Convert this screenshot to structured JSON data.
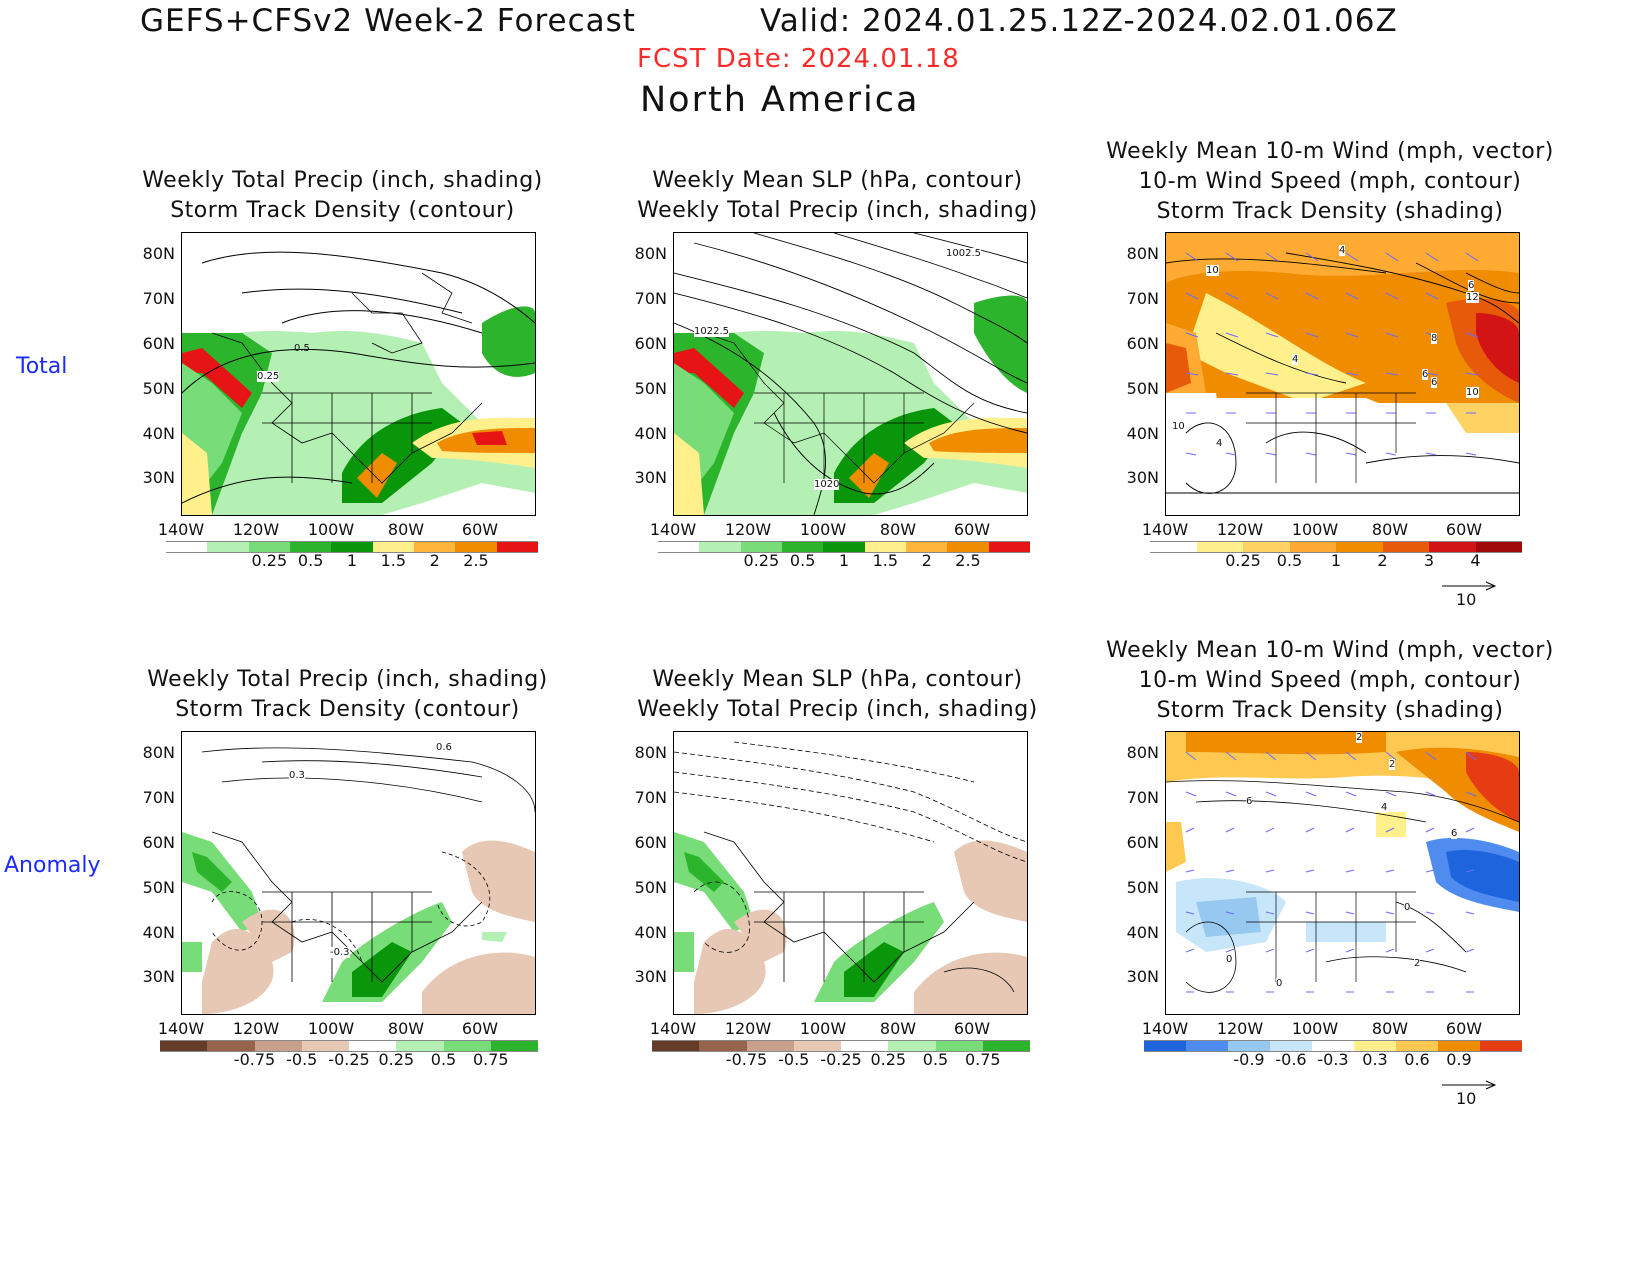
{
  "header": {
    "title": "GEFS+CFSv2 Week-2 Forecast",
    "valid": "Valid: 2024.01.25.12Z-2024.02.01.06Z",
    "fcst_date": "FCST Date: 2024.01.18",
    "region": "North America"
  },
  "row_labels": {
    "total": "Total",
    "anomaly": "Anomaly"
  },
  "axes": {
    "lat_labels": [
      "80N",
      "70N",
      "60N",
      "50N",
      "40N",
      "30N"
    ],
    "lon_labels": [
      "140W",
      "120W",
      "100W",
      "80W",
      "60W"
    ]
  },
  "panels": {
    "p1": {
      "title1": "Weekly Total Precip (inch, shading)",
      "title2": "Storm Track Density (contour)"
    },
    "p2": {
      "title1": "Weekly Mean SLP (hPa, contour)",
      "title2": "Weekly Total Precip (inch, shading)"
    },
    "p3": {
      "title1": "Weekly Mean 10-m Wind (mph, vector)",
      "title2": "10-m Wind Speed (mph, contour)",
      "title3": "Storm Track Density (shading)"
    },
    "p4": {
      "title1": "Weekly Total Precip (inch, shading)",
      "title2": "Storm Track Density (contour)"
    },
    "p5": {
      "title1": "Weekly Mean SLP (hPa, contour)",
      "title2": "Weekly Total Precip (inch, shading)"
    },
    "p6": {
      "title1": "Weekly Mean 10-m Wind (mph, vector)",
      "title2": "10-m Wind Speed (mph, contour)",
      "title3": "Storm Track Density (shading)"
    }
  },
  "contour_labels": {
    "p1": [
      "0.5",
      "0.25"
    ],
    "p2": [
      "1002.5",
      "1022.5",
      "1020"
    ],
    "p3": [
      "4",
      "10",
      "6",
      "12",
      "8",
      "4",
      "6",
      "6",
      "10",
      "10",
      "4"
    ],
    "p4": [
      "0.6",
      "0.3",
      "-0.3"
    ],
    "p6": [
      "2",
      "2",
      "6",
      "4",
      "6",
      "0",
      "2",
      "0",
      "0"
    ]
  },
  "colorbars": {
    "precip_total": {
      "labels": [
        "0.25",
        "0.5",
        "1",
        "1.5",
        "2",
        "2.5"
      ],
      "colors": [
        "#ffffff",
        "#b4f0b4",
        "#78dc78",
        "#2db42d",
        "#0a960a",
        "#fff08c",
        "#ffb43c",
        "#f08c00",
        "#e61414"
      ]
    },
    "std_total": {
      "labels": [
        "0.25",
        "0.5",
        "1",
        "2",
        "3",
        "4"
      ],
      "colors": [
        "#ffffff",
        "#fff08c",
        "#ffd264",
        "#ffaa32",
        "#f08c00",
        "#e65a0a",
        "#d21414",
        "#a00a0a"
      ]
    },
    "precip_anom": {
      "labels": [
        "-0.75",
        "-0.5",
        "-0.25",
        "0.25",
        "0.5",
        "0.75"
      ],
      "colors": [
        "#643c28",
        "#96644b",
        "#c8a08c",
        "#e6c8b4",
        "#ffffff",
        "#b4f0b4",
        "#78dc78",
        "#2db42d"
      ]
    },
    "std_anom": {
      "labels": [
        "-0.9",
        "-0.6",
        "-0.3",
        "0.3",
        "0.6",
        "0.9"
      ],
      "colors": [
        "#1e64dc",
        "#508cf0",
        "#96c8f0",
        "#c8e6fa",
        "#ffffff",
        "#fff08c",
        "#ffc850",
        "#f08c00",
        "#e63c14"
      ]
    }
  },
  "vector_ref": {
    "label": "10"
  }
}
